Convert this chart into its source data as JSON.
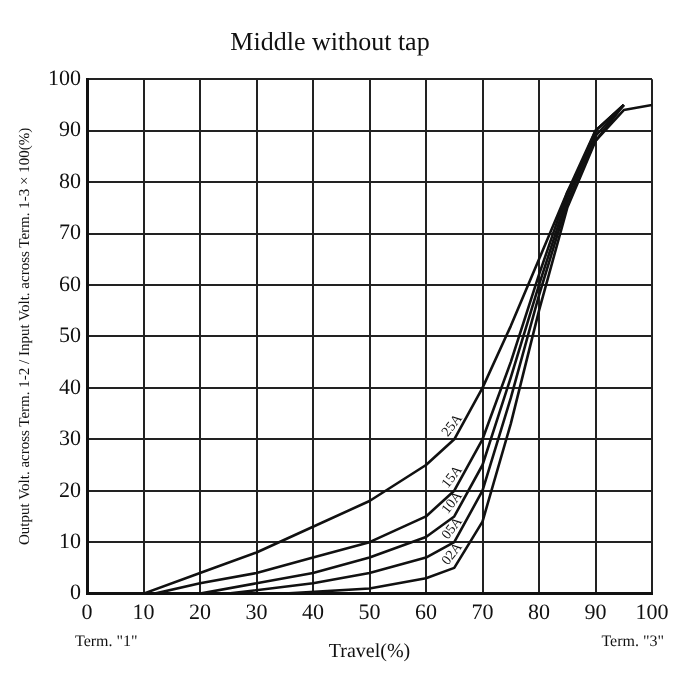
{
  "chart_data": {
    "type": "line",
    "title": "Middle without tap",
    "xlabel": "Travel(%)",
    "ylabel": "Output Volt. across Term. 1-2 / Input Volt. across Term. 1-3 × 100(%)",
    "annotations": [
      "Term. \"1\"",
      "Term. \"3\""
    ],
    "xlim": [
      0,
      100
    ],
    "ylim": [
      0,
      100
    ],
    "xticks": [
      0,
      10,
      20,
      30,
      40,
      50,
      60,
      70,
      80,
      90,
      100
    ],
    "yticks": [
      0,
      10,
      20,
      30,
      40,
      50,
      60,
      70,
      80,
      90,
      100
    ],
    "grid": true,
    "legend": false,
    "marker": "none",
    "line_style": "solid",
    "series": [
      {
        "name": "25A",
        "color": "#111111",
        "x": [
          10,
          20,
          30,
          40,
          50,
          60,
          65,
          70,
          75,
          80,
          85,
          90,
          95,
          100
        ],
        "values": [
          0,
          4,
          8,
          13,
          18,
          25,
          30,
          40,
          52,
          65,
          78,
          88,
          94,
          95
        ]
      },
      {
        "name": "15A",
        "color": "#111111",
        "x": [
          12,
          20,
          30,
          40,
          50,
          60,
          65,
          70,
          75,
          80,
          85,
          90,
          95
        ],
        "values": [
          0,
          2,
          4,
          7,
          10,
          15,
          20,
          30,
          45,
          62,
          78,
          90,
          95
        ]
      },
      {
        "name": "10A",
        "color": "#111111",
        "x": [
          20,
          30,
          40,
          50,
          60,
          65,
          70,
          75,
          80,
          85,
          90,
          95
        ],
        "values": [
          0,
          2,
          4,
          7,
          11,
          15,
          25,
          42,
          60,
          77,
          90,
          95
        ]
      },
      {
        "name": "05A",
        "color": "#111111",
        "x": [
          25,
          40,
          50,
          60,
          65,
          70,
          75,
          80,
          85,
          90,
          95
        ],
        "values": [
          0,
          2,
          4,
          7,
          10,
          20,
          38,
          58,
          76,
          89,
          95
        ]
      },
      {
        "name": "02A",
        "color": "#111111",
        "x": [
          35,
          50,
          60,
          65,
          70,
          75,
          80,
          85,
          90,
          95
        ],
        "values": [
          0,
          1,
          3,
          5,
          14,
          33,
          55,
          75,
          88,
          95
        ]
      }
    ]
  }
}
